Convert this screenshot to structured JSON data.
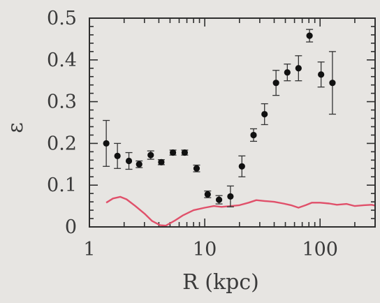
{
  "chart_data": {
    "type": "scatter",
    "xlabel": "R (kpc)",
    "ylabel": "ε",
    "xscale": "log",
    "xlim": [
      1,
      300
    ],
    "ylim": [
      0,
      0.5
    ],
    "grid": false,
    "legend": "none",
    "x_ticks": [
      {
        "value": 1,
        "label": "1"
      },
      {
        "value": 10,
        "label": "10"
      },
      {
        "value": 100,
        "label": "100"
      }
    ],
    "y_ticks": [
      {
        "value": 0,
        "label": "0"
      },
      {
        "value": 0.1,
        "label": "0.1"
      },
      {
        "value": 0.2,
        "label": "0.2"
      },
      {
        "value": 0.3,
        "label": "0.3"
      },
      {
        "value": 0.4,
        "label": "0.4"
      },
      {
        "value": 0.5,
        "label": "0.5"
      }
    ],
    "series": [
      {
        "kind": "points-with-errorbars",
        "color": "#111111",
        "points": [
          {
            "x": 1.4,
            "y": 0.2,
            "err": 0.055
          },
          {
            "x": 1.75,
            "y": 0.17,
            "err": 0.03
          },
          {
            "x": 2.2,
            "y": 0.158,
            "err": 0.02
          },
          {
            "x": 2.7,
            "y": 0.15,
            "err": 0.008
          },
          {
            "x": 3.4,
            "y": 0.172,
            "err": 0.01
          },
          {
            "x": 4.2,
            "y": 0.155,
            "err": 0.006
          },
          {
            "x": 5.3,
            "y": 0.178,
            "err": 0.006
          },
          {
            "x": 6.7,
            "y": 0.178,
            "err": 0.006
          },
          {
            "x": 8.5,
            "y": 0.14,
            "err": 0.008
          },
          {
            "x": 10.6,
            "y": 0.078,
            "err": 0.008
          },
          {
            "x": 13.3,
            "y": 0.065,
            "err": 0.01
          },
          {
            "x": 16.7,
            "y": 0.073,
            "err": 0.025
          },
          {
            "x": 21,
            "y": 0.145,
            "err": 0.025
          },
          {
            "x": 26.5,
            "y": 0.22,
            "err": 0.015
          },
          {
            "x": 33,
            "y": 0.27,
            "err": 0.025
          },
          {
            "x": 41.5,
            "y": 0.345,
            "err": 0.03
          },
          {
            "x": 52,
            "y": 0.37,
            "err": 0.02
          },
          {
            "x": 65,
            "y": 0.38,
            "err": 0.03
          },
          {
            "x": 81,
            "y": 0.458,
            "err": 0.015
          },
          {
            "x": 102,
            "y": 0.365,
            "err": 0.03
          },
          {
            "x": 128,
            "y": 0.345,
            "err": 0.075
          }
        ]
      },
      {
        "kind": "line",
        "color": "#e0506a",
        "x": [
          1.4,
          1.6,
          1.85,
          2.1,
          2.5,
          3.0,
          3.5,
          4.1,
          4.6,
          5.5,
          6.5,
          8.0,
          10,
          12,
          14,
          17,
          20,
          24,
          28,
          33,
          40,
          48,
          56,
          65,
          75,
          85,
          100,
          120,
          140,
          170,
          200,
          240,
          280,
          300
        ],
        "y": [
          0.058,
          0.068,
          0.072,
          0.066,
          0.05,
          0.032,
          0.014,
          0.004,
          0.003,
          0.015,
          0.028,
          0.04,
          0.046,
          0.05,
          0.048,
          0.05,
          0.052,
          0.058,
          0.064,
          0.062,
          0.06,
          0.056,
          0.052,
          0.046,
          0.052,
          0.058,
          0.058,
          0.056,
          0.053,
          0.055,
          0.05,
          0.052,
          0.053,
          0.051
        ]
      }
    ]
  }
}
